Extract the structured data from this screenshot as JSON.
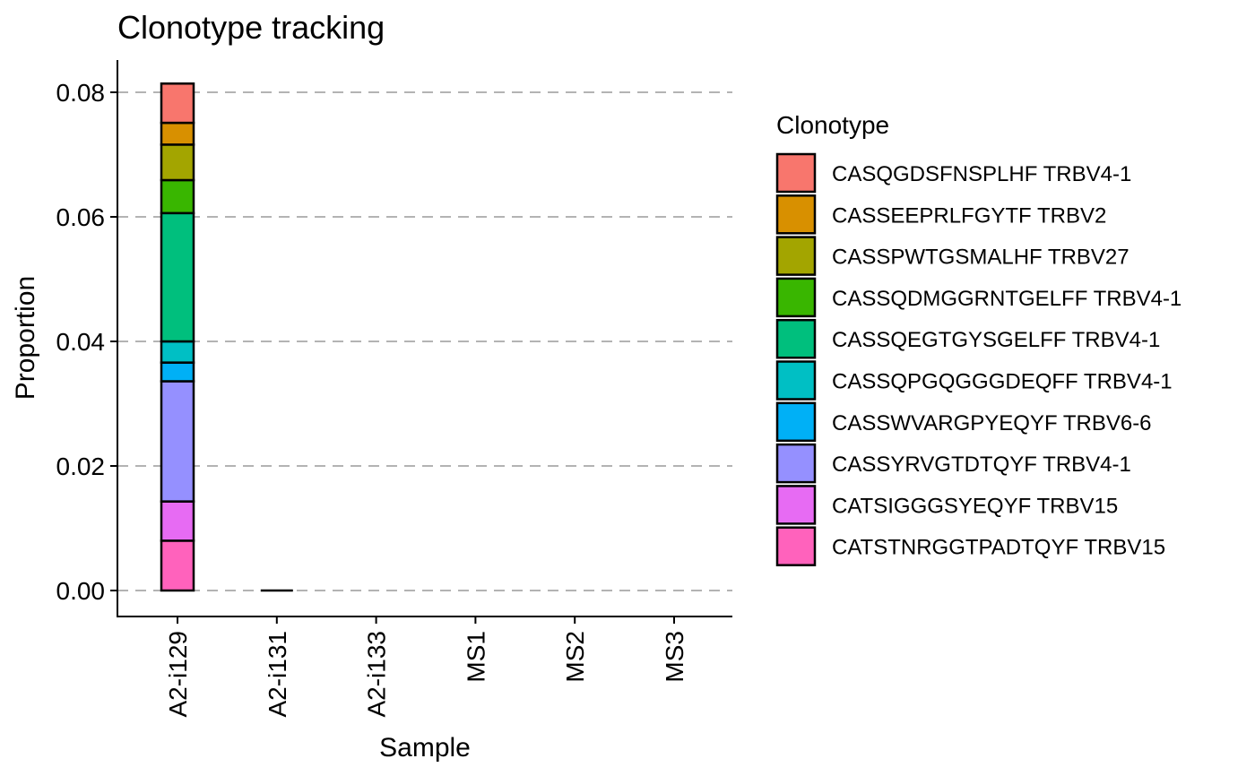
{
  "chart_data": {
    "type": "bar",
    "stacked": true,
    "title": "Clonotype tracking",
    "xlabel": "Sample",
    "ylabel": "Proportion",
    "ylim": [
      -0.004,
      0.085
    ],
    "yticks": [
      0.0,
      0.02,
      0.04,
      0.06,
      0.08
    ],
    "ytick_labels": [
      "0.00",
      "0.02",
      "0.04",
      "0.06",
      "0.08"
    ],
    "grid": "horizontal dashed",
    "legend_title": "Clonotype",
    "legend_position": "right",
    "categories": [
      "A2-i129",
      "A2-i131",
      "A2-i133",
      "MS1",
      "MS2",
      "MS3"
    ],
    "series": [
      {
        "name": "CASQGDSFNSPLHF TRBV4-1",
        "color": "#F8766D",
        "values": [
          0.0063,
          0,
          0,
          0,
          0,
          0
        ]
      },
      {
        "name": "CASSEEPRLFGYTF TRBV2",
        "color": "#D89000",
        "values": [
          0.0035,
          0,
          0,
          0,
          0,
          0
        ]
      },
      {
        "name": "CASSPWTGSMALHF TRBV27",
        "color": "#A3A500",
        "values": [
          0.0057,
          0,
          0,
          0,
          0,
          0
        ]
      },
      {
        "name": "CASSQDMGGRNTGELFF TRBV4-1",
        "color": "#39B600",
        "values": [
          0.0053,
          0,
          0,
          0,
          0,
          0
        ]
      },
      {
        "name": "CASSQEGTGYSGELFF TRBV4-1",
        "color": "#00BF7D",
        "values": [
          0.0206,
          0,
          0,
          0,
          0,
          0
        ]
      },
      {
        "name": "CASSQPGQGGGDEQFF TRBV4-1",
        "color": "#00BFC4",
        "values": [
          0.0034,
          0,
          0,
          0,
          0,
          0
        ]
      },
      {
        "name": "CASSWVARGPYEQYF TRBV6-6",
        "color": "#00B0F6",
        "values": [
          0.003,
          0,
          0,
          0,
          0,
          0
        ]
      },
      {
        "name": "CASSYRVGTDTQYF TRBV4-1",
        "color": "#9590FF",
        "values": [
          0.0193,
          0,
          0,
          0,
          0,
          0
        ]
      },
      {
        "name": "CATSIGGGSYEQYF TRBV15",
        "color": "#E76BF3",
        "values": [
          0.0063,
          0,
          0,
          0,
          0,
          0
        ]
      },
      {
        "name": "CATSTNRGGTPADTQYF TRBV15",
        "color": "#FF62BC",
        "values": [
          0.008,
          0,
          0,
          0,
          0,
          0
        ]
      }
    ]
  }
}
